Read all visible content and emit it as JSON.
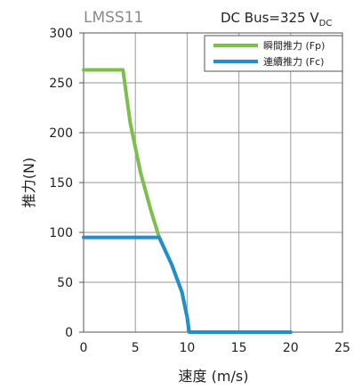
{
  "chart_data": {
    "type": "line",
    "model_label": "LMSS11",
    "bus_label": "DC Bus=325 V",
    "bus_subscript": "DC",
    "xlabel": "速度 (m/s)",
    "ylabel": "推力(N)",
    "xlim": [
      0,
      25
    ],
    "ylim": [
      0,
      300
    ],
    "x_ticks": [
      "0",
      "5",
      "10",
      "15",
      "20",
      "25"
    ],
    "y_ticks": [
      "0",
      "50",
      "100",
      "150",
      "200",
      "250",
      "300"
    ],
    "grid": true,
    "legend_position": "top-right",
    "series": [
      {
        "name": "瞬間推力 (Fp)",
        "color": "#7cc04b",
        "x": [
          0,
          3.8,
          4.5,
          5.5,
          6.5,
          7.3,
          8.5,
          9.5,
          10.0,
          10.2,
          20
        ],
        "y": [
          263,
          263,
          210,
          160,
          122,
          95,
          68,
          40,
          15,
          0,
          0
        ]
      },
      {
        "name": "連續推力 (Fc)",
        "color": "#1f8fd0",
        "x": [
          0,
          7.3,
          8.5,
          9.5,
          10.0,
          10.2,
          20
        ],
        "y": [
          95,
          95,
          68,
          40,
          15,
          0,
          0
        ]
      }
    ]
  }
}
